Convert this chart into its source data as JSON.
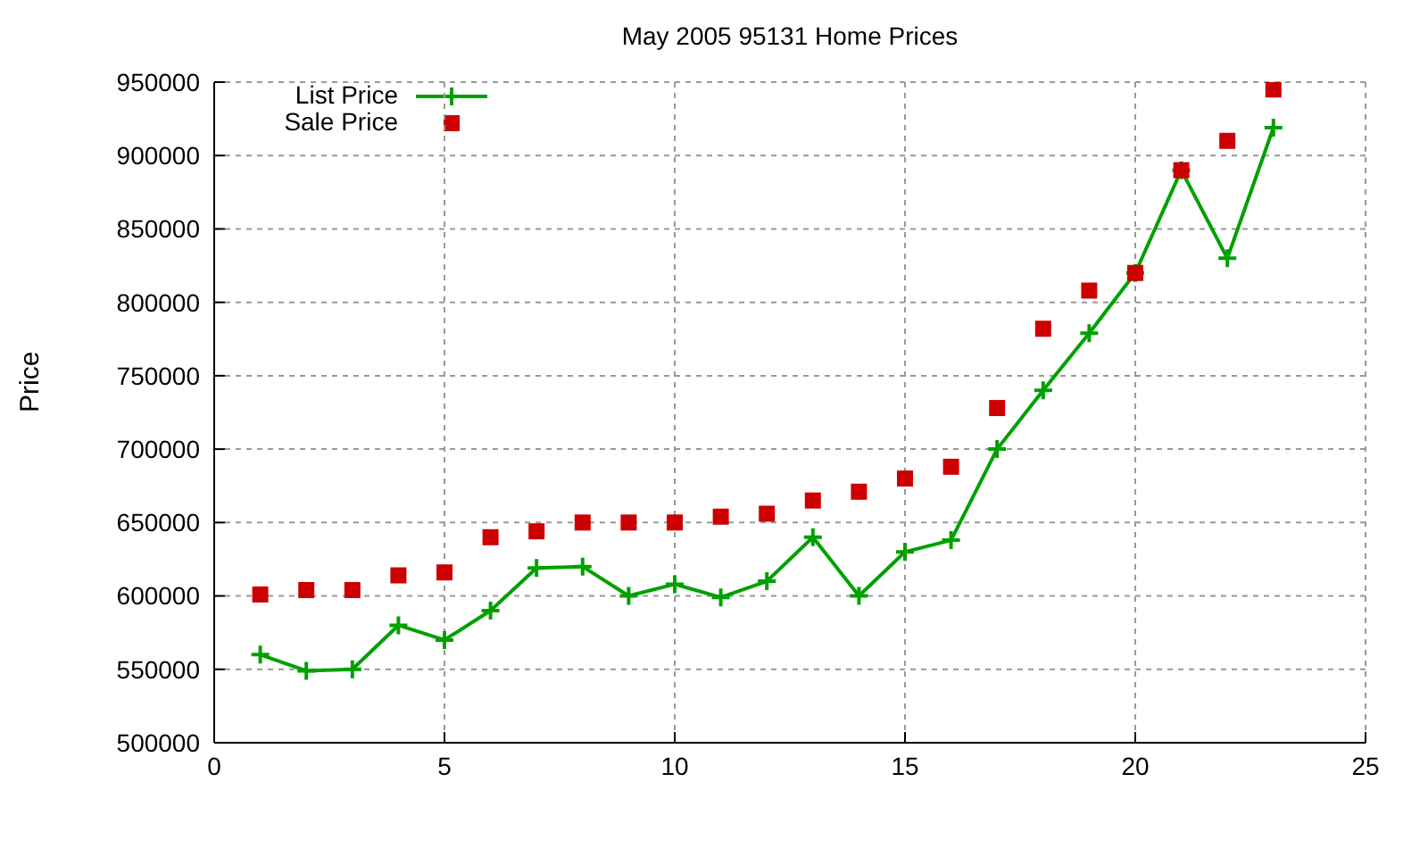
{
  "chart_data": {
    "type": "line",
    "title": "May 2005 95131 Home Prices",
    "ylabel": "Price",
    "x": [
      1,
      2,
      3,
      4,
      5,
      6,
      7,
      8,
      9,
      10,
      11,
      12,
      13,
      14,
      15,
      16,
      17,
      18,
      19,
      20,
      21,
      22,
      23
    ],
    "series": [
      {
        "name": "List Price",
        "marker": "cross",
        "color": "#00a000",
        "values": [
          560000,
          549000,
          550000,
          580000,
          570000,
          590000,
          619000,
          620000,
          600000,
          608000,
          599000,
          610000,
          640000,
          600000,
          630000,
          638000,
          700000,
          740000,
          779000,
          820000,
          890000,
          830000,
          919000
        ]
      },
      {
        "name": "Sale Price",
        "type": "scatter",
        "marker": "square",
        "color": "#cc0000",
        "values": [
          601000,
          604000,
          604000,
          614000,
          616000,
          640000,
          644000,
          650000,
          650000,
          650000,
          654000,
          656000,
          665000,
          671000,
          680000,
          688000,
          728000,
          782000,
          808000,
          820000,
          890000,
          910000,
          945000
        ]
      }
    ],
    "xlim": [
      0,
      25
    ],
    "xticks": [
      0,
      5,
      10,
      15,
      20,
      25
    ],
    "ylim": [
      500000,
      950000
    ],
    "yticks": [
      500000,
      550000,
      600000,
      650000,
      700000,
      750000,
      800000,
      850000,
      900000,
      950000
    ],
    "grid": true,
    "legend": "top left"
  }
}
